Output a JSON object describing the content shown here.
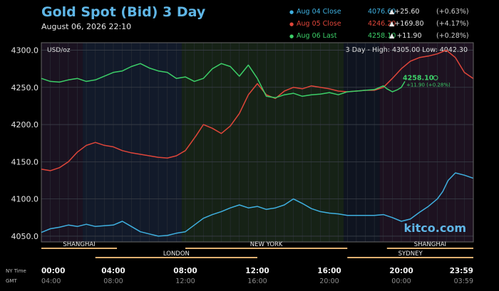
{
  "header": {
    "title": "Gold Spot (Bid) 3 Day",
    "subtitle": "August 06, 2026 22:10"
  },
  "legend": [
    {
      "label": "Aug 04 Close",
      "value": "4076.60",
      "change": "▲+25.60",
      "pct": "(+0.63%)",
      "color": "#3fb0e0"
    },
    {
      "label": "Aug 05 Close",
      "value": "4246.20",
      "change": "▲+169.80",
      "pct": "(+4.17%)",
      "color": "#e0463a"
    },
    {
      "label": "Aug 06 Last",
      "value": "4258.10",
      "change": "▲ +11.90",
      "pct": "(+0.28%)",
      "color": "#3ccf68"
    }
  ],
  "chart_info": {
    "unit": "USD/oz",
    "range_text": "3 Day - High: 4305.00  Low: 4042.30",
    "watermark": "kitco.com",
    "callout_price": "4258.10",
    "callout_change": "+11.90 (+0.28%)",
    "time_row_labels": [
      "NY Time",
      "GMT"
    ],
    "markets_top": [
      "SHANGHAI",
      "NEW YORK",
      "SHANGHAI"
    ],
    "markets_bottom": [
      "LONDON",
      "SYDNEY"
    ]
  },
  "chart_data": {
    "type": "line",
    "title": "Gold Spot (Bid) 3 Day",
    "ylabel": "USD/oz",
    "xlabel": "",
    "ylim": [
      4042.3,
      4310
    ],
    "xlim": [
      0,
      24
    ],
    "grid": true,
    "legend_position": "top-right",
    "yticks": [
      4050,
      4100,
      4150,
      4200,
      4250,
      4300
    ],
    "ytick_labels": [
      "4050.0",
      "4100.0",
      "4150.0",
      "4200.0",
      "4250.0",
      "4300.0"
    ],
    "xticks": [
      0,
      4,
      8,
      12,
      16,
      20,
      24
    ],
    "xtick_labels_ny": [
      "00:00",
      "04:00",
      "08:00",
      "12:00",
      "16:00",
      "20:00",
      "23:59"
    ],
    "xtick_labels_gmt": [
      "04:00",
      "08:00",
      "12:00",
      "16:00",
      "20:00",
      "00:00",
      "03:59"
    ],
    "series": [
      {
        "name": "Aug 04 Close",
        "color": "#3fb0e0",
        "x": [
          0,
          0.5,
          1,
          1.5,
          2,
          2.5,
          3,
          3.5,
          4,
          4.5,
          5,
          5.5,
          6,
          6.5,
          7,
          7.5,
          8,
          8.5,
          9,
          9.5,
          10,
          10.5,
          11,
          11.5,
          12,
          12.5,
          13,
          13.5,
          14,
          14.5,
          15,
          15.5,
          16,
          16.5,
          17,
          17.5,
          18,
          18.5,
          19,
          19.5,
          20,
          20.5,
          21,
          21.5,
          22,
          22.3,
          22.6,
          23,
          23.5,
          23.99
        ],
        "y": [
          4055,
          4060,
          4062,
          4065,
          4063,
          4066,
          4063,
          4064,
          4065,
          4070,
          4063,
          4056,
          4053,
          4050,
          4051,
          4054,
          4056,
          4065,
          4074,
          4079,
          4083,
          4088,
          4092,
          4088,
          4090,
          4086,
          4088,
          4092,
          4100,
          4094,
          4087,
          4083,
          4081,
          4080,
          4078,
          4078,
          4078,
          4078,
          4079,
          4075,
          4070,
          4073,
          4082,
          4090,
          4100,
          4110,
          4125,
          4135,
          4132,
          4128
        ]
      },
      {
        "name": "Aug 05 Close",
        "color": "#e0463a",
        "x": [
          0,
          0.5,
          1,
          1.5,
          2,
          2.5,
          3,
          3.5,
          4,
          4.5,
          5,
          5.5,
          6,
          6.5,
          7,
          7.5,
          8,
          8.3,
          8.6,
          9,
          9.5,
          10,
          10.5,
          11,
          11.5,
          12,
          12.5,
          13,
          13.5,
          14,
          14.5,
          15,
          15.5,
          16,
          16.5,
          17,
          17.5,
          18,
          18.5,
          19,
          19.5,
          20,
          20.5,
          21,
          21.5,
          22,
          22.5,
          23,
          23.5,
          23.99
        ],
        "y": [
          4140,
          4138,
          4142,
          4150,
          4163,
          4172,
          4176,
          4172,
          4170,
          4165,
          4162,
          4160,
          4158,
          4156,
          4155,
          4158,
          4165,
          4175,
          4185,
          4200,
          4195,
          4188,
          4198,
          4215,
          4240,
          4255,
          4240,
          4235,
          4245,
          4250,
          4248,
          4252,
          4250,
          4248,
          4245,
          4244,
          4245,
          4246,
          4246,
          4250,
          4262,
          4275,
          4285,
          4290,
          4292,
          4295,
          4300,
          4290,
          4270,
          4262
        ]
      },
      {
        "name": "Aug 06 Last",
        "color": "#3ccf68",
        "x": [
          0,
          0.5,
          1,
          1.5,
          2,
          2.5,
          3,
          3.5,
          4,
          4.5,
          5,
          5.5,
          6,
          6.5,
          7,
          7.5,
          8,
          8.5,
          9,
          9.5,
          10,
          10.5,
          11,
          11.5,
          12,
          12.5,
          13,
          13.5,
          14,
          14.5,
          15,
          15.5,
          16,
          16.5,
          17,
          17.5,
          18,
          18.5,
          19,
          19.2,
          19.5,
          19.8,
          20,
          20.2
        ],
        "y": [
          4262,
          4258,
          4257,
          4260,
          4262,
          4258,
          4260,
          4265,
          4270,
          4272,
          4278,
          4282,
          4276,
          4272,
          4270,
          4262,
          4264,
          4258,
          4262,
          4275,
          4282,
          4278,
          4265,
          4280,
          4262,
          4238,
          4236,
          4240,
          4242,
          4238,
          4240,
          4241,
          4243,
          4240,
          4244,
          4245,
          4246,
          4247,
          4252,
          4248,
          4244,
          4247,
          4250,
          4258
        ]
      }
    ]
  }
}
